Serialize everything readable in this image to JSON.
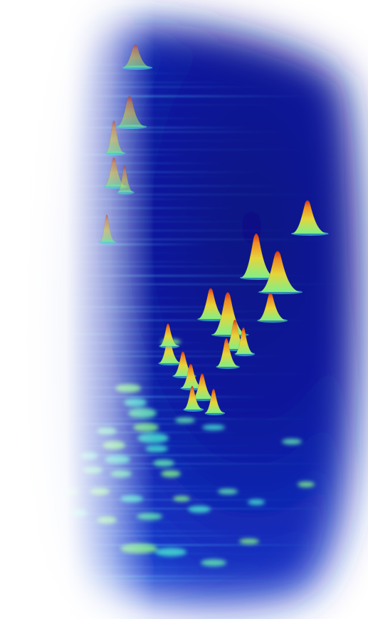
{
  "scene": {
    "kind": "3d-intensity-landscape",
    "colormap": [
      "#0a1590",
      "#1238d8",
      "#1f7ff0",
      "#3fe0d8",
      "#7ff08a",
      "#f2d23a",
      "#e8551c"
    ],
    "background": "#ffffff",
    "peaks": [
      {
        "level": 0.62
      },
      {
        "level": 0.95
      },
      {
        "level": 0.85
      },
      {
        "level": 0.55
      },
      {
        "level": 0.9
      },
      {
        "level": 0.45
      },
      {
        "level": 0.5
      },
      {
        "level": 0.42
      },
      {
        "level": 0.48
      },
      {
        "level": 0.4
      },
      {
        "level": 0.36
      },
      {
        "level": 0.35
      },
      {
        "level": 0.38
      },
      {
        "level": 0.33
      },
      {
        "level": 0.35
      },
      {
        "level": 0.3
      },
      {
        "level": 0.32
      },
      {
        "level": 0.55
      },
      {
        "level": 0.6
      },
      {
        "level": 0.5
      },
      {
        "level": 0.45
      },
      {
        "level": 0.42
      }
    ]
  }
}
